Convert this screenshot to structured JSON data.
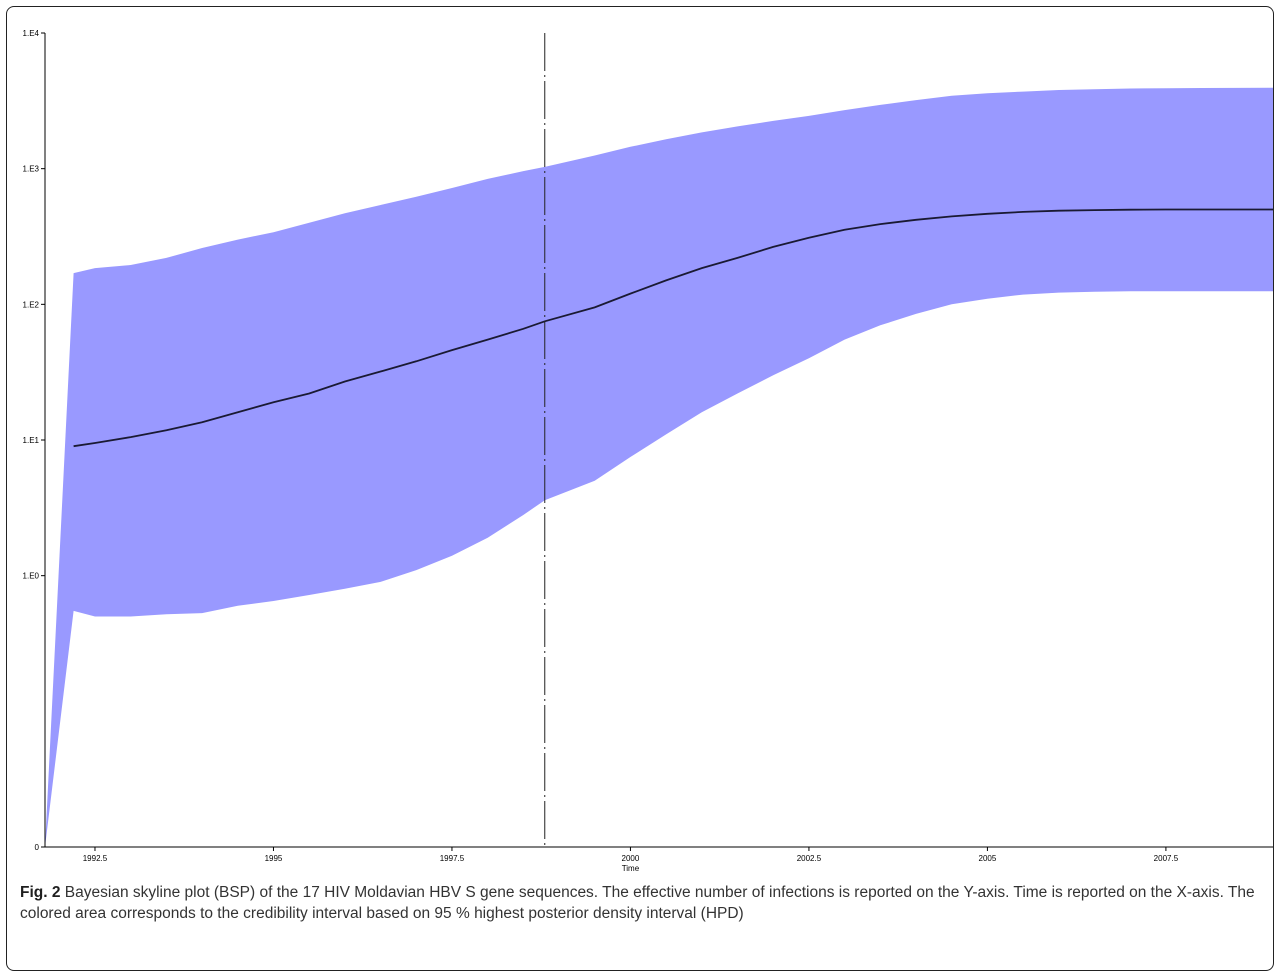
{
  "figure": {
    "label": "Fig. 2",
    "caption": "Bayesian skyline plot (BSP) of the 17 HIV Moldavian HBV S gene sequences. The effective number of infections is reported on the Y-axis. Time is reported on the X-axis. The colored area corresponds to the credibility interval based on 95 % highest posterior density interval (HPD)"
  },
  "colors": {
    "band": "#9999ff",
    "median_line": "#1a1a33",
    "axis": "#000000",
    "vline": "#222222"
  },
  "chart_data": {
    "type": "area",
    "title": "",
    "xlabel": "Time",
    "ylabel": "",
    "xlim": [
      1991.8,
      2009.0
    ],
    "ylim": [
      0.01,
      10000
    ],
    "y_scale": "log",
    "y_zero_tick_at_bottom": true,
    "grid": false,
    "x_ticks": [
      1992.5,
      1995,
      1997.5,
      2000,
      2002.5,
      2005,
      2007.5
    ],
    "x_tick_labels": [
      "1992.5",
      "1995",
      "1997.5",
      "2000",
      "2002.5",
      "2005",
      "2007.5"
    ],
    "y_ticks": [
      0.01,
      1,
      10,
      100,
      1000,
      10000
    ],
    "y_tick_labels": [
      "0",
      "1.E0",
      "1.E1",
      "1.E2",
      "1.E3",
      "1.E4"
    ],
    "vertical_line_x": 1998.8,
    "series": [
      {
        "values": {
          "x": [
            1991.8,
            1992.2,
            1992.5,
            1993.0,
            1993.5,
            1994.0,
            1994.5,
            1995.0,
            1995.5,
            1996.0,
            1996.5,
            1997.0,
            1997.5,
            1998.0,
            1998.5,
            1998.8,
            1999.5,
            2000.0,
            2000.5,
            2001.0,
            2001.5,
            2002.0,
            2002.5,
            2003.0,
            2003.5,
            2004.0,
            2004.5,
            2005.0,
            2005.5,
            2006.0,
            2006.5,
            2007.0,
            2007.5,
            2008.0,
            2008.5,
            2009.0
          ],
          "lower": [
            0.01,
            0.55,
            0.5,
            0.5,
            0.52,
            0.53,
            0.6,
            0.65,
            0.72,
            0.8,
            0.9,
            1.1,
            1.4,
            1.9,
            2.8,
            3.6,
            5.0,
            7.5,
            11,
            16,
            22,
            30,
            40,
            55,
            70,
            85,
            100,
            110,
            118,
            122,
            124,
            125,
            125,
            125,
            125,
            125
          ],
          "median": [
            null,
            9.0,
            9.5,
            10.5,
            11.8,
            13.5,
            16,
            19,
            22,
            27,
            32,
            38,
            46,
            55,
            66,
            75,
            95,
            120,
            150,
            185,
            220,
            265,
            310,
            355,
            390,
            420,
            445,
            465,
            480,
            490,
            495,
            498,
            500,
            500,
            500,
            500
          ],
          "upper": [
            0.01,
            170,
            185,
            195,
            220,
            260,
            300,
            340,
            400,
            470,
            540,
            620,
            720,
            840,
            960,
            1030,
            1250,
            1450,
            1650,
            1850,
            2050,
            2250,
            2450,
            2700,
            2950,
            3200,
            3450,
            3600,
            3700,
            3800,
            3850,
            3900,
            3920,
            3930,
            3940,
            3950
          ]
        }
      }
    ]
  }
}
